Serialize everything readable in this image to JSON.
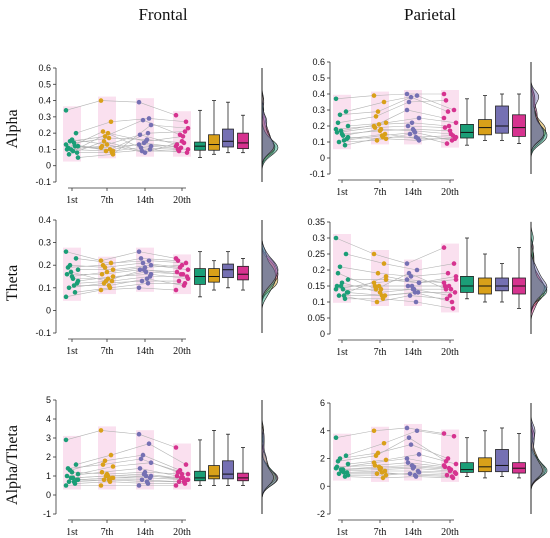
{
  "column_titles": [
    "Frontal",
    "Parietal"
  ],
  "row_titles": [
    "Alpha",
    "Theta",
    "Alpha/Theta"
  ],
  "session_labels": [
    "1st",
    "7th",
    "14th",
    "20th"
  ],
  "colors": {
    "1st": "#1b9e77",
    "7th": "#d9a019",
    "14th": "#7570b3",
    "20th": "#d6338f",
    "jitter_shade": "#f6c7e2"
  },
  "chart_data": [
    {
      "type": "scatter",
      "title": "Frontal",
      "ylabel": "Alpha",
      "categories": [
        "1st",
        "7th",
        "14th",
        "20th"
      ],
      "ylim": [
        -0.1,
        0.6
      ],
      "yticks": [
        -0.1,
        0,
        0.1,
        0.2,
        0.3,
        0.4,
        0.5,
        0.6
      ],
      "series": [
        {
          "values": [
            0.34,
            0.2,
            0.15,
            0.12,
            0.1,
            0.09,
            0.08,
            0.07,
            0.12,
            0.13,
            0.16,
            0.05,
            0.11,
            0.14,
            0.1
          ]
        },
        {
          "values": [
            0.4,
            0.27,
            0.18,
            0.09,
            0.12,
            0.2,
            0.08,
            0.15,
            0.1,
            0.11,
            0.13,
            0.07,
            0.21,
            0.17,
            0.09
          ]
        },
        {
          "values": [
            0.39,
            0.29,
            0.28,
            0.12,
            0.19,
            0.15,
            0.1,
            0.09,
            0.2,
            0.13,
            0.08,
            0.25,
            0.11,
            0.16,
            0.14
          ]
        },
        {
          "values": [
            0.31,
            0.27,
            0.19,
            0.1,
            0.13,
            0.18,
            0.08,
            0.09,
            0.21,
            0.12,
            0.15,
            0.23,
            0.1,
            0.14,
            0.11
          ]
        }
      ]
    },
    {
      "type": "scatter",
      "title": "Parietal",
      "ylabel": "Alpha",
      "categories": [
        "1st",
        "7th",
        "14th",
        "20th"
      ],
      "ylim": [
        -0.1,
        0.6
      ],
      "yticks": [
        -0.1,
        0,
        0.1,
        0.2,
        0.3,
        0.4,
        0.5,
        0.6
      ],
      "series": [
        {
          "values": [
            0.37,
            0.29,
            0.27,
            0.2,
            0.16,
            0.14,
            0.12,
            0.1,
            0.08,
            0.18,
            0.15,
            0.13,
            0.22,
            0.11,
            0.17
          ]
        },
        {
          "values": [
            0.39,
            0.35,
            0.29,
            0.22,
            0.19,
            0.18,
            0.15,
            0.11,
            0.13,
            0.2,
            0.17,
            0.12,
            0.26,
            0.14,
            0.21
          ]
        },
        {
          "values": [
            0.4,
            0.39,
            0.38,
            0.25,
            0.2,
            0.17,
            0.12,
            0.15,
            0.13,
            0.3,
            0.18,
            0.11,
            0.35,
            0.16,
            0.22
          ]
        },
        {
          "values": [
            0.4,
            0.3,
            0.29,
            0.22,
            0.19,
            0.15,
            0.12,
            0.09,
            0.14,
            0.25,
            0.17,
            0.13,
            0.36,
            0.11,
            0.2
          ]
        }
      ]
    },
    {
      "type": "scatter",
      "title": "Frontal",
      "ylabel": "Theta",
      "categories": [
        "1st",
        "7th",
        "14th",
        "20th"
      ],
      "ylim": [
        -0.1,
        0.4
      ],
      "yticks": [
        -0.1,
        0,
        0.1,
        0.2,
        0.3,
        0.4
      ],
      "series": [
        {
          "values": [
            0.26,
            0.23,
            0.2,
            0.18,
            0.16,
            0.14,
            0.12,
            0.1,
            0.08,
            0.06,
            0.15,
            0.13,
            0.19,
            0.11,
            0.17
          ]
        },
        {
          "values": [
            0.22,
            0.21,
            0.19,
            0.18,
            0.16,
            0.14,
            0.13,
            0.12,
            0.1,
            0.09,
            0.17,
            0.15,
            0.2,
            0.11,
            0.13
          ]
        },
        {
          "values": [
            0.26,
            0.22,
            0.21,
            0.2,
            0.18,
            0.17,
            0.15,
            0.13,
            0.12,
            0.1,
            0.19,
            0.16,
            0.23,
            0.14,
            0.18
          ]
        },
        {
          "values": [
            0.23,
            0.21,
            0.19,
            0.18,
            0.17,
            0.16,
            0.15,
            0.13,
            0.12,
            0.09,
            0.2,
            0.14,
            0.22,
            0.11,
            0.16
          ]
        }
      ]
    },
    {
      "type": "scatter",
      "title": "Parietal",
      "ylabel": "Theta",
      "categories": [
        "1st",
        "7th",
        "14th",
        "20th"
      ],
      "ylim": [
        0,
        0.35
      ],
      "yticks": [
        0,
        0.05,
        0.1,
        0.15,
        0.2,
        0.25,
        0.3,
        0.35
      ],
      "series": [
        {
          "values": [
            0.3,
            0.25,
            0.21,
            0.17,
            0.15,
            0.14,
            0.13,
            0.12,
            0.11,
            0.14,
            0.16,
            0.13,
            0.19,
            0.12,
            0.15
          ]
        },
        {
          "values": [
            0.25,
            0.22,
            0.19,
            0.17,
            0.15,
            0.14,
            0.12,
            0.1,
            0.11,
            0.16,
            0.13,
            0.18,
            0.14,
            0.12,
            0.15
          ]
        },
        {
          "values": [
            0.22,
            0.2,
            0.18,
            0.16,
            0.15,
            0.14,
            0.13,
            0.12,
            0.1,
            0.17,
            0.14,
            0.16,
            0.19,
            0.13,
            0.15
          ]
        },
        {
          "values": [
            0.27,
            0.22,
            0.19,
            0.17,
            0.15,
            0.14,
            0.13,
            0.11,
            0.08,
            0.16,
            0.12,
            0.18,
            0.14,
            0.1,
            0.15
          ]
        }
      ]
    },
    {
      "type": "scatter",
      "title": "Frontal",
      "ylabel": "Alpha/Theta",
      "categories": [
        "1st",
        "7th",
        "14th",
        "20th"
      ],
      "ylim": [
        -1,
        5
      ],
      "yticks": [
        -1,
        0,
        1,
        2,
        3,
        4,
        5
      ],
      "series": [
        {
          "values": [
            2.9,
            1.6,
            1.3,
            1.1,
            1.0,
            0.9,
            0.8,
            0.7,
            0.6,
            0.5,
            1.2,
            0.8,
            1.4,
            0.7,
            0.9
          ]
        },
        {
          "values": [
            3.4,
            2.1,
            1.8,
            1.5,
            1.2,
            1.0,
            0.9,
            0.8,
            0.7,
            0.5,
            1.1,
            0.9,
            1.6,
            0.8,
            1.0
          ]
        },
        {
          "values": [
            3.2,
            2.7,
            2.1,
            1.7,
            1.4,
            1.0,
            0.9,
            0.8,
            0.6,
            0.5,
            1.2,
            1.0,
            1.9,
            0.7,
            1.1
          ]
        },
        {
          "values": [
            2.5,
            1.6,
            1.3,
            1.1,
            1.0,
            0.9,
            0.8,
            0.7,
            0.6,
            0.5,
            1.1,
            0.8,
            1.2,
            0.7,
            0.9
          ]
        }
      ]
    },
    {
      "type": "scatter",
      "title": "Parietal",
      "ylabel": "Alpha/Theta",
      "categories": [
        "1st",
        "7th",
        "14th",
        "20th"
      ],
      "ylim": [
        -2,
        6
      ],
      "yticks": [
        -2,
        0,
        2,
        4,
        6
      ],
      "series": [
        {
          "values": [
            3.5,
            2.2,
            2.0,
            1.6,
            1.4,
            1.2,
            1.0,
            0.9,
            0.7,
            1.3,
            1.1,
            0.8,
            1.8,
            1.0,
            1.2
          ]
        },
        {
          "values": [
            4.0,
            3.1,
            2.4,
            1.9,
            1.5,
            1.3,
            1.1,
            0.9,
            0.6,
            1.7,
            1.2,
            0.8,
            2.2,
            1.0,
            1.4
          ]
        },
        {
          "values": [
            4.2,
            4.0,
            3.0,
            2.3,
            1.7,
            1.4,
            1.1,
            0.9,
            0.7,
            2.0,
            1.3,
            1.0,
            3.5,
            0.8,
            1.5
          ]
        },
        {
          "values": [
            3.8,
            3.6,
            2.0,
            1.6,
            1.4,
            1.2,
            1.0,
            0.8,
            0.6,
            1.5,
            1.1,
            0.9,
            1.8,
            0.7,
            1.3
          ]
        }
      ]
    }
  ]
}
